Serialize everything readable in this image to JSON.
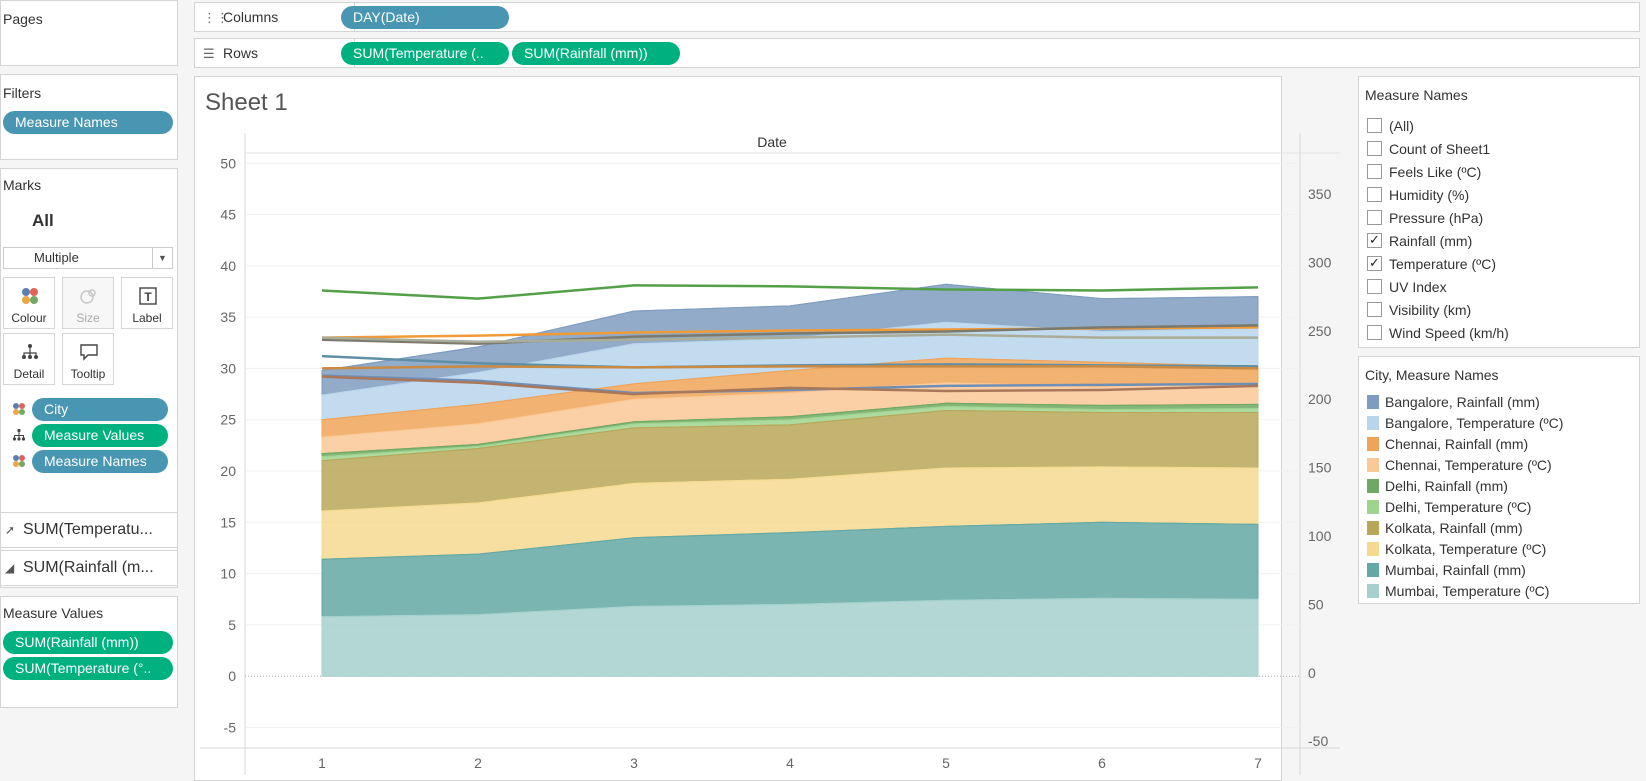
{
  "pages_panel": {
    "title": "Pages"
  },
  "columns_shelf": {
    "label": "Columns",
    "icon": "columns-icon",
    "pills": [
      "DAY(Date)"
    ]
  },
  "rows_shelf": {
    "label": "Rows",
    "icon": "rows-icon",
    "pills": [
      "SUM(Temperature (..",
      "SUM(Rainfall (mm))"
    ]
  },
  "filters_panel": {
    "title": "Filters",
    "pills": [
      "Measure Names"
    ]
  },
  "marks_panel": {
    "title": "Marks",
    "all_label": "All",
    "mark_type": "Multiple",
    "buttons": [
      "Colour",
      "Size",
      "Label",
      "Detail",
      "Tooltip"
    ],
    "fields": [
      {
        "icon": "colour-icon",
        "label": "City"
      },
      {
        "icon": "detail-icon",
        "label": "Measure Values"
      },
      {
        "icon": "colour-icon",
        "label": "Measure Names"
      }
    ],
    "sub_cards": [
      {
        "icon": "line-chart-icon",
        "label": "SUM(Temperatu..."
      },
      {
        "icon": "area-chart-icon",
        "label": "SUM(Rainfall (m..."
      }
    ]
  },
  "measure_values_panel": {
    "title": "Measure Values",
    "pills": [
      "SUM(Rainfall (mm))",
      "SUM(Temperature (°.."
    ]
  },
  "sheet": {
    "title": "Sheet 1",
    "column_header": "Date"
  },
  "measure_names_filter": {
    "title": "Measure Names",
    "items": [
      {
        "label": "(All)",
        "checked": false
      },
      {
        "label": "Count of Sheet1",
        "checked": false
      },
      {
        "label": "Feels Like (ºC)",
        "checked": false
      },
      {
        "label": "Humidity (%)",
        "checked": false
      },
      {
        "label": "Pressure (hPa)",
        "checked": false
      },
      {
        "label": "Rainfall (mm)",
        "checked": true
      },
      {
        "label": "Temperature (ºC)",
        "checked": true
      },
      {
        "label": "UV Index",
        "checked": false
      },
      {
        "label": "Visibility (km)",
        "checked": false
      },
      {
        "label": "Wind Speed (km/h)",
        "checked": false
      }
    ]
  },
  "legend": {
    "title": "City, Measure Names",
    "items": [
      {
        "label": "Bangalore, Rainfall (mm)",
        "color": "#7e9cc0"
      },
      {
        "label": "Bangalore, Temperature (ºC)",
        "color": "#b9d5ec"
      },
      {
        "label": "Chennai, Rainfall (mm)",
        "color": "#f0a459"
      },
      {
        "label": "Chennai, Temperature (ºC)",
        "color": "#fbc897"
      },
      {
        "label": "Delhi, Rainfall (mm)",
        "color": "#6fa862"
      },
      {
        "label": "Delhi, Temperature (ºC)",
        "color": "#9ed48e"
      },
      {
        "label": "Kolkata, Rainfall (mm)",
        "color": "#b9a759"
      },
      {
        "label": "Kolkata, Temperature (ºC)",
        "color": "#f4d98f"
      },
      {
        "label": "Mumbai, Rainfall (mm)",
        "color": "#63a8a4"
      },
      {
        "label": "Mumbai, Temperature (ºC)",
        "color": "#a5d0cd"
      }
    ]
  },
  "chart_data": {
    "type": "area",
    "title": "Sheet 1",
    "xlabel": "Date",
    "categories": [
      1,
      2,
      3,
      4,
      5,
      6,
      7
    ],
    "left_axis": {
      "ylim": [
        -7,
        51
      ],
      "ticks": [
        50,
        45,
        40,
        35,
        30,
        25,
        20,
        15,
        10,
        5,
        0,
        -5
      ]
    },
    "right_axis": {
      "ylim": [
        -55,
        380
      ],
      "ticks": [
        350,
        300,
        250,
        200,
        150,
        100,
        50,
        0,
        -50
      ]
    },
    "stacked_area_boundaries_left_units": {
      "Mumbai, Temperature (ºC)": [
        5.8,
        6.0,
        6.8,
        7.0,
        7.4,
        7.6,
        7.5
      ],
      "Mumbai, Rainfall (mm)": [
        11.4,
        11.9,
        13.5,
        14.0,
        14.6,
        15.0,
        14.8
      ],
      "Kolkata, Temperature (ºC)": [
        16.1,
        16.9,
        18.8,
        19.2,
        20.3,
        20.4,
        20.3
      ],
      "Kolkata, Rainfall (mm)": [
        21.0,
        22.2,
        24.2,
        24.5,
        25.9,
        25.7,
        25.7
      ],
      "Delhi, Temperature (ºC)": [
        21.4,
        22.4,
        24.6,
        25.0,
        26.3,
        26.0,
        26.1
      ],
      "Delhi, Rainfall (mm)": [
        21.7,
        22.6,
        24.8,
        25.3,
        26.6,
        26.4,
        26.5
      ],
      "Chennai, Temperature (ºC)": [
        23.3,
        24.6,
        27.0,
        27.6,
        28.6,
        28.2,
        28.6
      ],
      "Chennai, Rainfall (mm)": [
        25.0,
        26.5,
        28.5,
        29.8,
        31.0,
        30.6,
        30.2
      ],
      "Bangalore, Temperature (ºC)": [
        27.4,
        29.6,
        32.4,
        32.9,
        34.5,
        33.6,
        33.9
      ],
      "Bangalore, Rainfall (mm)": [
        29.8,
        32.1,
        35.6,
        36.1,
        38.2,
        36.8,
        37.0
      ]
    },
    "lines_left_units": [
      {
        "color": "#54a048",
        "values": [
          37.6,
          36.8,
          38.1,
          38.0,
          37.7,
          37.6,
          37.9
        ]
      },
      {
        "color": "#f09a38",
        "values": [
          33.0,
          33.2,
          33.5,
          33.7,
          33.8,
          33.9,
          34.0
        ]
      },
      {
        "color": "#7b7a6c",
        "values": [
          32.8,
          32.4,
          33.1,
          33.4,
          33.6,
          34.0,
          34.2
        ]
      },
      {
        "color": "#a9ad98",
        "values": [
          33.0,
          32.6,
          32.8,
          33.0,
          33.3,
          33.0,
          33.0
        ]
      },
      {
        "color": "#5f8fa6",
        "values": [
          31.2,
          30.5,
          30.1,
          30.3,
          30.4,
          30.3,
          30.2
        ]
      },
      {
        "color": "#6f8fb5",
        "values": [
          29.3,
          28.8,
          27.6,
          27.9,
          28.3,
          28.4,
          28.5
        ]
      },
      {
        "color": "#a9785b",
        "values": [
          29.2,
          28.6,
          27.5,
          28.1,
          27.8,
          27.9,
          28.3
        ]
      },
      {
        "color": "#c98a44",
        "values": [
          30.0,
          30.2,
          30.1,
          30.2,
          30.2,
          30.2,
          30.0
        ]
      }
    ]
  }
}
